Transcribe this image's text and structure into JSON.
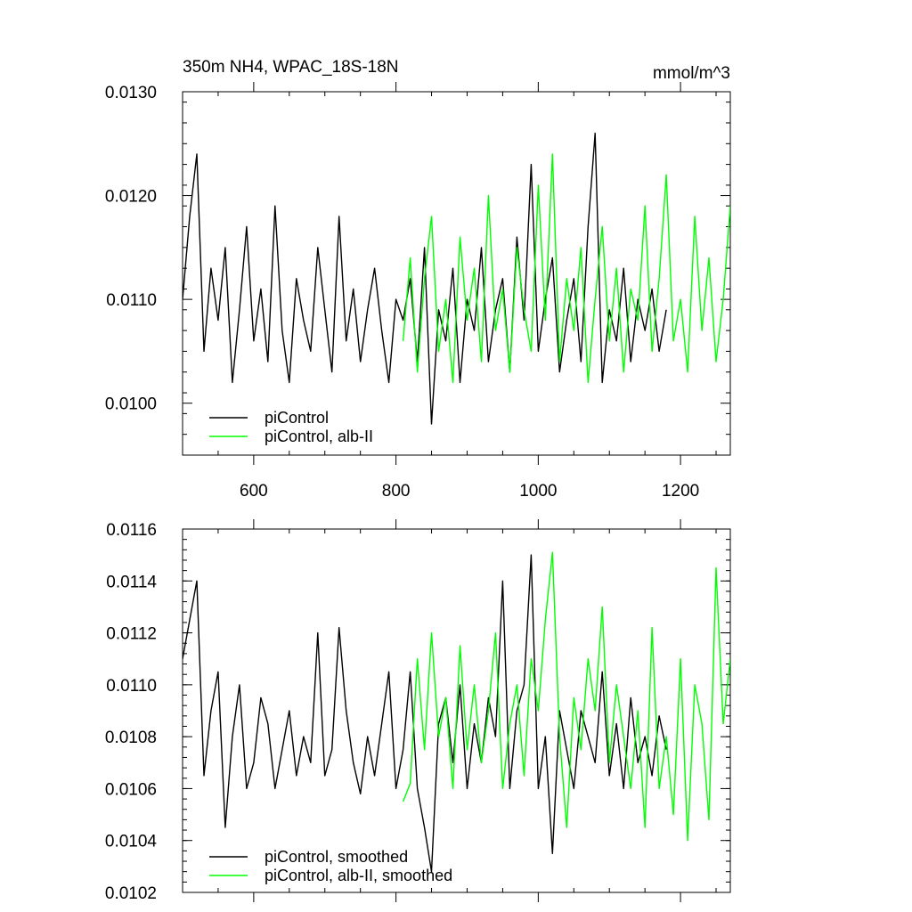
{
  "chart_data": [
    {
      "type": "line",
      "title": "350m NH4, WPAC_18S-18N",
      "units": "mmol/m^3",
      "xlim": [
        500,
        1270
      ],
      "ylim": [
        0.0095,
        0.013
      ],
      "x_ticks": [
        {
          "value": 600,
          "label": "600"
        },
        {
          "value": 800,
          "label": "800"
        },
        {
          "value": 1000,
          "label": "1000"
        },
        {
          "value": 1200,
          "label": "1200"
        }
      ],
      "y_ticks": [
        {
          "value": 0.01,
          "label": "0.0100"
        },
        {
          "value": 0.011,
          "label": "0.0110"
        },
        {
          "value": 0.012,
          "label": "0.0120"
        },
        {
          "value": 0.013,
          "label": "0.0130"
        }
      ],
      "legend_placement": "bottom-left",
      "series": [
        {
          "name": "piControl",
          "color": "#000000",
          "x": [
            500,
            510,
            520,
            530,
            540,
            550,
            560,
            570,
            580,
            590,
            600,
            610,
            620,
            630,
            640,
            650,
            660,
            670,
            680,
            690,
            700,
            710,
            720,
            730,
            740,
            750,
            760,
            770,
            780,
            790,
            800,
            810,
            820,
            830,
            840,
            850,
            860,
            870,
            880,
            890,
            900,
            910,
            920,
            930,
            940,
            950,
            960,
            970,
            980,
            990,
            1000,
            1010,
            1020,
            1030,
            1040,
            1050,
            1060,
            1070,
            1080,
            1090,
            1100,
            1110,
            1120,
            1130,
            1140,
            1150,
            1160,
            1170,
            1180
          ],
          "values": [
            0.011,
            0.0118,
            0.0124,
            0.0105,
            0.0113,
            0.0108,
            0.0115,
            0.0102,
            0.0109,
            0.0117,
            0.0106,
            0.0111,
            0.0104,
            0.0119,
            0.0107,
            0.0102,
            0.0112,
            0.0108,
            0.0105,
            0.0115,
            0.0109,
            0.0103,
            0.0118,
            0.0106,
            0.0111,
            0.0104,
            0.0109,
            0.0113,
            0.0107,
            0.0102,
            0.011,
            0.0108,
            0.0112,
            0.0104,
            0.0115,
            0.0098,
            0.0109,
            0.0106,
            0.0113,
            0.0102,
            0.011,
            0.0107,
            0.0115,
            0.0104,
            0.0109,
            0.0112,
            0.0103,
            0.0116,
            0.0108,
            0.0123,
            0.0105,
            0.011,
            0.0114,
            0.0103,
            0.0108,
            0.0112,
            0.0104,
            0.0117,
            0.0126,
            0.0102,
            0.0109,
            0.0106,
            0.0113,
            0.0104,
            0.011,
            0.0107,
            0.0111,
            0.0105,
            0.0109
          ]
        },
        {
          "name": "piControl, alb-II",
          "color": "#00ff00",
          "x": [
            810,
            820,
            830,
            840,
            850,
            860,
            870,
            880,
            890,
            900,
            910,
            920,
            930,
            940,
            950,
            960,
            970,
            980,
            990,
            1000,
            1010,
            1020,
            1030,
            1040,
            1050,
            1060,
            1070,
            1080,
            1090,
            1100,
            1110,
            1120,
            1130,
            1140,
            1150,
            1160,
            1170,
            1180,
            1190,
            1200,
            1210,
            1220,
            1230,
            1240,
            1250,
            1260,
            1270
          ],
          "values": [
            0.0106,
            0.0114,
            0.0103,
            0.0112,
            0.0118,
            0.0105,
            0.011,
            0.0102,
            0.0116,
            0.0108,
            0.0113,
            0.0104,
            0.012,
            0.0107,
            0.0111,
            0.0103,
            0.0115,
            0.0109,
            0.0105,
            0.0121,
            0.0108,
            0.0124,
            0.0104,
            0.0112,
            0.0107,
            0.0115,
            0.0102,
            0.011,
            0.0117,
            0.0106,
            0.0113,
            0.0103,
            0.0111,
            0.0108,
            0.0119,
            0.0105,
            0.0112,
            0.0122,
            0.0106,
            0.011,
            0.0103,
            0.0118,
            0.0107,
            0.0114,
            0.0104,
            0.011,
            0.0119
          ]
        }
      ]
    },
    {
      "type": "line",
      "xlim": [
        500,
        1270
      ],
      "ylim": [
        0.0102,
        0.0116
      ],
      "x_ticks": [
        {
          "value": 600
        },
        {
          "value": 800
        },
        {
          "value": 1000
        },
        {
          "value": 1200
        }
      ],
      "y_ticks": [
        {
          "value": 0.0102,
          "label": "0.0102"
        },
        {
          "value": 0.0104,
          "label": "0.0104"
        },
        {
          "value": 0.0106,
          "label": "0.0106"
        },
        {
          "value": 0.0108,
          "label": "0.0108"
        },
        {
          "value": 0.011,
          "label": "0.0110"
        },
        {
          "value": 0.0112,
          "label": "0.0112"
        },
        {
          "value": 0.0114,
          "label": "0.0114"
        },
        {
          "value": 0.0116,
          "label": "0.0116"
        }
      ],
      "legend_placement": "bottom-left",
      "series": [
        {
          "name": "piControl, smoothed",
          "color": "#000000",
          "x": [
            500,
            510,
            520,
            530,
            540,
            550,
            560,
            570,
            580,
            590,
            600,
            610,
            620,
            630,
            640,
            650,
            660,
            670,
            680,
            690,
            700,
            710,
            720,
            730,
            740,
            750,
            760,
            770,
            780,
            790,
            800,
            810,
            820,
            830,
            840,
            850,
            860,
            870,
            880,
            890,
            900,
            910,
            920,
            930,
            940,
            950,
            960,
            970,
            980,
            990,
            1000,
            1010,
            1020,
            1030,
            1040,
            1050,
            1060,
            1070,
            1080,
            1090,
            1100,
            1110,
            1120,
            1130,
            1140,
            1150,
            1160,
            1170,
            1180
          ],
          "values": [
            0.0111,
            0.01125,
            0.0114,
            0.01065,
            0.0109,
            0.01105,
            0.01045,
            0.0108,
            0.011,
            0.0106,
            0.0107,
            0.01095,
            0.01085,
            0.0106,
            0.01075,
            0.0109,
            0.01065,
            0.0108,
            0.0107,
            0.0112,
            0.01065,
            0.01075,
            0.01122,
            0.0109,
            0.0107,
            0.01058,
            0.0108,
            0.01065,
            0.01085,
            0.01105,
            0.0106,
            0.01075,
            0.01105,
            0.0106,
            0.01045,
            0.01028,
            0.01085,
            0.01095,
            0.0107,
            0.011,
            0.0106,
            0.01085,
            0.0107,
            0.01095,
            0.0108,
            0.0114,
            0.0106,
            0.0109,
            0.011,
            0.0115,
            0.0106,
            0.0108,
            0.01035,
            0.0109,
            0.01075,
            0.0106,
            0.0109,
            0.0108,
            0.0107,
            0.01105,
            0.01065,
            0.01085,
            0.0106,
            0.01095,
            0.0107,
            0.0108,
            0.01065,
            0.01088,
            0.01075
          ]
        },
        {
          "name": "piControl, alb-II, smoothed",
          "color": "#00ff00",
          "x": [
            810,
            820,
            830,
            840,
            850,
            860,
            870,
            880,
            890,
            900,
            910,
            920,
            930,
            940,
            950,
            960,
            970,
            980,
            990,
            1000,
            1010,
            1020,
            1030,
            1040,
            1050,
            1060,
            1070,
            1080,
            1090,
            1100,
            1110,
            1120,
            1130,
            1140,
            1150,
            1160,
            1170,
            1180,
            1190,
            1200,
            1210,
            1220,
            1230,
            1240,
            1250,
            1260,
            1270
          ],
          "values": [
            0.01055,
            0.01062,
            0.0111,
            0.01075,
            0.0112,
            0.0108,
            0.01095,
            0.0106,
            0.01115,
            0.01075,
            0.011,
            0.0107,
            0.0109,
            0.0112,
            0.0106,
            0.01085,
            0.011,
            0.01065,
            0.0111,
            0.0109,
            0.01125,
            0.01151,
            0.0108,
            0.01045,
            0.01095,
            0.01075,
            0.0111,
            0.0109,
            0.0113,
            0.0107,
            0.011,
            0.0108,
            0.0106,
            0.0109,
            0.01045,
            0.01122,
            0.0106,
            0.0108,
            0.0105,
            0.0111,
            0.0104,
            0.011,
            0.01085,
            0.01048,
            0.01145,
            0.01085,
            0.0111
          ]
        }
      ]
    }
  ]
}
